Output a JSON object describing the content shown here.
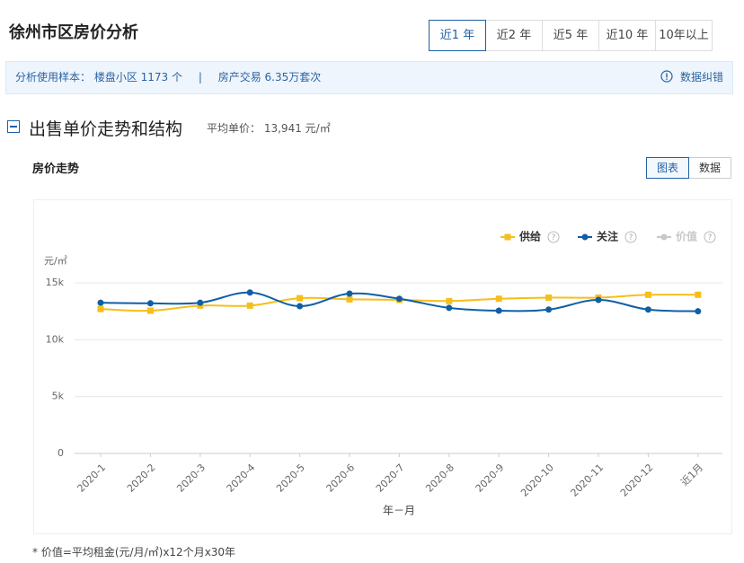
{
  "header": {
    "title": "徐州市区房价分析",
    "tabs": [
      "近1 年",
      "近2 年",
      "近5 年",
      "近10 年",
      "10年以上"
    ]
  },
  "info": {
    "sample": "分析使用样本： 楼盘小区 1173 个",
    "separator": "|",
    "trade": "房产交易 6.35万套次",
    "correction": "数据纠错"
  },
  "section": {
    "title": "出售单价走势和结构",
    "avg_label": "平均单价：",
    "avg_value": "13,941 元/㎡"
  },
  "panel": {
    "title": "房价走势",
    "views": [
      "图表",
      "数据"
    ]
  },
  "chart_data": {
    "type": "line",
    "y_unit": "元/㎡",
    "xlabel": "年－月",
    "categories": [
      "2020-1",
      "2020-2",
      "2020-3",
      "2020-4",
      "2020-5",
      "2020-6",
      "2020-7",
      "2020-8",
      "2020-9",
      "2020-10",
      "2020-11",
      "2020-12",
      "近1月"
    ],
    "series": [
      {
        "name": "供给",
        "color": "#f6be1a",
        "marker": "square",
        "values": [
          12700,
          12550,
          13000,
          13000,
          13650,
          13550,
          13500,
          13400,
          13600,
          13700,
          13700,
          13950,
          13950
        ]
      },
      {
        "name": "关注",
        "color": "#0f5fa6",
        "marker": "circle",
        "values": [
          13250,
          13200,
          13250,
          14150,
          12950,
          14050,
          13600,
          12800,
          12550,
          12650,
          13500,
          12650,
          12500
        ]
      },
      {
        "name": "价值",
        "color": "#c8c8c8",
        "marker": "circle",
        "disabled": true,
        "values": [
          null,
          null,
          null,
          null,
          null,
          null,
          null,
          null,
          null,
          null,
          null,
          null,
          null
        ]
      }
    ],
    "ylim": [
      0,
      15000
    ],
    "yticks": [
      0,
      {
        "value": 5000,
        "label": "5k"
      },
      {
        "value": 10000,
        "label": "10k"
      },
      {
        "value": 15000,
        "label": "15k"
      }
    ],
    "grid": true,
    "legend": "top-right"
  },
  "footnote": "* 价值=平均租金(元/月/㎡)x12个月x30年"
}
